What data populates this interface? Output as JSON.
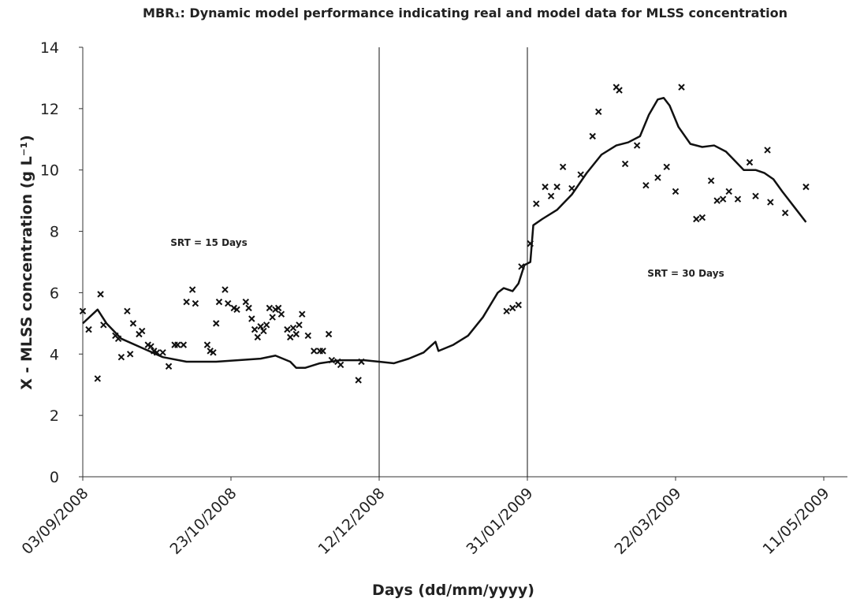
{
  "chart_data": {
    "type": "scatter-line",
    "title": "MBR₁: Dynamic model performance indicating real and model data for MLSS concentration",
    "x_label": "Days (dd/mm/yyyy)",
    "y_label": "X - MLSS concentration (g L⁻¹)",
    "annotations": [
      "SRT = 15 Days",
      "SRT = 30 Days"
    ],
    "vlines": [
      "2008-12-12",
      "2009-01-31"
    ],
    "xlim": [
      "2008-09-03",
      "2009-05-11"
    ],
    "xticks": [
      {
        "value": "2008-09-03",
        "label": "03/09/2008"
      },
      {
        "value": "2008-10-23",
        "label": "23/10/2008"
      },
      {
        "value": "2008-12-12",
        "label": "12/12/2008"
      },
      {
        "value": "2009-01-31",
        "label": "31/01/2009"
      },
      {
        "value": "2009-03-22",
        "label": "22/03/2009"
      },
      {
        "value": "2009-05-11",
        "label": "11/05/2009"
      }
    ],
    "ylim": [
      0,
      14
    ],
    "yticks": [
      0,
      2,
      4,
      6,
      8,
      10,
      12,
      14
    ],
    "series": [
      {
        "kind": "scatter",
        "color": "#111111",
        "x": [
          "2008-09-03",
          "2008-09-05",
          "2008-09-08",
          "2008-09-09",
          "2008-09-10",
          "2008-09-14",
          "2008-09-15",
          "2008-09-16",
          "2008-09-18",
          "2008-09-19",
          "2008-09-20",
          "2008-09-22",
          "2008-09-23",
          "2008-09-25",
          "2008-09-26",
          "2008-09-27",
          "2008-09-28",
          "2008-09-30",
          "2008-10-02",
          "2008-10-04",
          "2008-10-05",
          "2008-10-07",
          "2008-10-08",
          "2008-10-10",
          "2008-10-11",
          "2008-10-15",
          "2008-10-16",
          "2008-10-17",
          "2008-10-18",
          "2008-10-19",
          "2008-10-21",
          "2008-10-22",
          "2008-10-24",
          "2008-10-25",
          "2008-10-28",
          "2008-10-29",
          "2008-10-30",
          "2008-10-31",
          "2008-11-01",
          "2008-11-02",
          "2008-11-03",
          "2008-11-04",
          "2008-11-05",
          "2008-11-06",
          "2008-11-07",
          "2008-11-08",
          "2008-11-09",
          "2008-11-11",
          "2008-11-12",
          "2008-11-13",
          "2008-11-14",
          "2008-11-15",
          "2008-11-16",
          "2008-11-18",
          "2008-11-20",
          "2008-11-22",
          "2008-11-23",
          "2008-11-25",
          "2008-11-26",
          "2008-11-28",
          "2008-11-29",
          "2008-12-05",
          "2008-12-06",
          "2009-01-24",
          "2009-01-26",
          "2009-01-28",
          "2009-01-29",
          "2009-02-01",
          "2009-02-03",
          "2009-02-06",
          "2009-02-08",
          "2009-02-10",
          "2009-02-12",
          "2009-02-15",
          "2009-02-18",
          "2009-02-22",
          "2009-02-24",
          "2009-03-02",
          "2009-03-03",
          "2009-03-05",
          "2009-03-09",
          "2009-03-12",
          "2009-03-16",
          "2009-03-19",
          "2009-03-22",
          "2009-03-24",
          "2009-03-29",
          "2009-03-31",
          "2009-04-03",
          "2009-04-05",
          "2009-04-07",
          "2009-04-09",
          "2009-04-12",
          "2009-04-16",
          "2009-04-18",
          "2009-04-22",
          "2009-04-23",
          "2009-04-28",
          "2009-05-05"
        ],
        "values": [
          5.4,
          4.8,
          3.2,
          5.95,
          4.95,
          4.6,
          4.5,
          3.9,
          5.4,
          4.0,
          5.0,
          4.65,
          4.75,
          4.3,
          4.25,
          4.1,
          4.05,
          4.05,
          3.6,
          4.3,
          4.3,
          4.3,
          5.7,
          6.1,
          5.65,
          4.3,
          4.1,
          4.05,
          5.0,
          5.7,
          6.1,
          5.65,
          5.5,
          5.45,
          5.7,
          5.5,
          5.15,
          4.8,
          4.55,
          4.9,
          4.75,
          4.95,
          5.5,
          5.2,
          5.45,
          5.5,
          5.3,
          4.8,
          4.55,
          4.85,
          4.65,
          4.95,
          5.3,
          4.6,
          4.1,
          4.1,
          4.1,
          4.65,
          3.8,
          3.75,
          3.65,
          3.15,
          3.75,
          5.4,
          5.5,
          5.6,
          6.85,
          7.6,
          8.9,
          9.45,
          9.15,
          9.45,
          10.1,
          9.4,
          9.85,
          11.1,
          11.9,
          12.7,
          12.6,
          10.2,
          10.8,
          9.5,
          9.75,
          10.1,
          9.3,
          12.7,
          8.4,
          8.45,
          9.65,
          9.0,
          9.05,
          9.3,
          9.05,
          10.25,
          9.15,
          10.65,
          8.95,
          8.6,
          9.45
        ]
      },
      {
        "kind": "line",
        "color": "#111111",
        "x": [
          "2008-09-03",
          "2008-09-08",
          "2008-09-11",
          "2008-09-16",
          "2008-09-23",
          "2008-09-30",
          "2008-10-08",
          "2008-10-18",
          "2008-11-02",
          "2008-11-07",
          "2008-11-12",
          "2008-11-14",
          "2008-11-17",
          "2008-11-22",
          "2008-11-29",
          "2008-12-07",
          "2008-12-12",
          "2008-12-17",
          "2008-12-22",
          "2008-12-27",
          "2008-12-31",
          "2009-01-01",
          "2009-01-06",
          "2009-01-11",
          "2009-01-16",
          "2009-01-21",
          "2009-01-23",
          "2009-01-26",
          "2009-01-28",
          "2009-01-30",
          "2009-02-01",
          "2009-02-02",
          "2009-02-05",
          "2009-02-10",
          "2009-02-15",
          "2009-02-20",
          "2009-02-25",
          "2009-03-02",
          "2009-03-06",
          "2009-03-10",
          "2009-03-13",
          "2009-03-16",
          "2009-03-18",
          "2009-03-20",
          "2009-03-23",
          "2009-03-27",
          "2009-03-31",
          "2009-04-04",
          "2009-04-08",
          "2009-04-11",
          "2009-04-14",
          "2009-04-18",
          "2009-04-21",
          "2009-04-24",
          "2009-04-27",
          "2009-05-01",
          "2009-05-05"
        ],
        "values": [
          5.0,
          5.45,
          5.0,
          4.5,
          4.2,
          3.9,
          3.75,
          3.75,
          3.85,
          3.95,
          3.75,
          3.55,
          3.55,
          3.7,
          3.8,
          3.8,
          3.75,
          3.7,
          3.85,
          4.05,
          4.4,
          4.1,
          4.3,
          4.6,
          5.2,
          6.0,
          6.15,
          6.05,
          6.3,
          6.9,
          7.0,
          8.2,
          8.4,
          8.7,
          9.2,
          9.9,
          10.5,
          10.8,
          10.9,
          11.1,
          11.8,
          12.3,
          12.35,
          12.1,
          11.4,
          10.85,
          10.75,
          10.8,
          10.6,
          10.3,
          10.0,
          10.0,
          9.9,
          9.7,
          9.3,
          8.8,
          8.3
        ]
      }
    ]
  }
}
